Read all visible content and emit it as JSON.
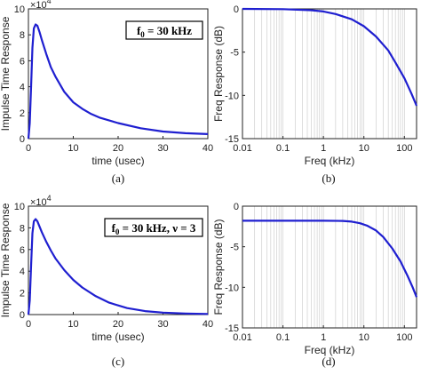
{
  "chart_data": [
    {
      "panel": "a",
      "type": "line",
      "caption": "(a)",
      "xlabel": "time (usec)",
      "ylabel": "Impulse Time Response",
      "exponent_label": "×10^4",
      "annotation": "f0 = 30 kHz",
      "xlim": [
        0,
        40
      ],
      "ylim": [
        0,
        10
      ],
      "xticks": [
        "0",
        "10",
        "20",
        "30",
        "40"
      ],
      "yticks": [
        "0",
        "2",
        "4",
        "6",
        "8",
        "10"
      ],
      "grid": false,
      "color": "#1f1fd0",
      "series": [
        {
          "x": [
            0,
            0.3,
            0.6,
            0.9,
            1.2,
            1.6,
            2.0,
            2.5,
            3.0,
            4.0,
            5.0,
            6.0,
            8.0,
            10.0,
            12.0,
            14.0,
            16.0,
            20.0,
            25.0,
            30.0,
            35.0,
            40.0
          ],
          "y": [
            0,
            1.2,
            4.0,
            7.0,
            8.5,
            8.8,
            8.7,
            8.2,
            7.6,
            6.5,
            5.5,
            4.8,
            3.6,
            2.8,
            2.3,
            1.9,
            1.6,
            1.2,
            0.8,
            0.55,
            0.42,
            0.35
          ]
        }
      ]
    },
    {
      "panel": "b",
      "type": "line",
      "caption": "(b)",
      "xlabel": "Freq (kHz)",
      "ylabel": "Freq Response (dB)",
      "xscale": "log",
      "xlim": [
        0.01,
        200
      ],
      "ylim": [
        -15,
        0
      ],
      "xticks": [
        "0.01",
        "0.1",
        "1",
        "10",
        "100"
      ],
      "yticks": [
        "0",
        "-5",
        "-10",
        "-15"
      ],
      "grid": "x-minor",
      "color": "#1f1fd0",
      "series": [
        {
          "x": [
            0.01,
            0.1,
            0.5,
            1,
            2,
            5,
            10,
            20,
            40,
            60,
            100,
            150,
            200
          ],
          "y": [
            0,
            -0.03,
            -0.15,
            -0.3,
            -0.6,
            -1.2,
            -2.0,
            -3.2,
            -4.8,
            -6.2,
            -8.0,
            -9.8,
            -11.2
          ]
        }
      ]
    },
    {
      "panel": "c",
      "type": "line",
      "caption": "(c)",
      "xlabel": "time (usec)",
      "ylabel": "Impulse Time Response",
      "exponent_label": "×10^4",
      "annotation": "f0 = 30 kHz, ν = 3",
      "xlim": [
        0,
        40
      ],
      "ylim": [
        0,
        10
      ],
      "xticks": [
        "0",
        "10",
        "20",
        "30",
        "40"
      ],
      "yticks": [
        "0",
        "2",
        "4",
        "6",
        "8",
        "10"
      ],
      "grid": false,
      "color": "#1f1fd0",
      "series": [
        {
          "x": [
            0,
            0.3,
            0.6,
            0.9,
            1.2,
            1.6,
            2.0,
            2.5,
            3.0,
            4.0,
            5.0,
            6.0,
            8.0,
            10.0,
            12.0,
            15.0,
            18.0,
            22.0,
            26.0,
            30.0,
            35.0,
            40.0
          ],
          "y": [
            0,
            1.3,
            4.5,
            7.5,
            8.6,
            8.8,
            8.6,
            8.1,
            7.6,
            6.7,
            5.9,
            5.2,
            4.1,
            3.2,
            2.5,
            1.7,
            1.1,
            0.6,
            0.32,
            0.18,
            0.1,
            0.06
          ]
        }
      ]
    },
    {
      "panel": "d",
      "type": "line",
      "caption": "(d)",
      "xlabel": "Freq (kHz)",
      "ylabel": "Freq Response (dB)",
      "xscale": "log",
      "xlim": [
        0.01,
        200
      ],
      "ylim": [
        -15,
        0
      ],
      "xticks": [
        "0.01",
        "0.1",
        "1",
        "10",
        "100"
      ],
      "yticks": [
        "0",
        "-5",
        "-10",
        "-15"
      ],
      "grid": "x-minor",
      "color": "#1f1fd0",
      "series": [
        {
          "x": [
            0.01,
            0.1,
            1,
            3,
            5,
            8,
            12,
            20,
            30,
            50,
            80,
            120,
            160,
            200
          ],
          "y": [
            -1.8,
            -1.8,
            -1.8,
            -1.82,
            -1.9,
            -2.1,
            -2.4,
            -3.0,
            -3.8,
            -5.2,
            -6.8,
            -8.6,
            -10.0,
            -11.2
          ]
        }
      ]
    }
  ]
}
